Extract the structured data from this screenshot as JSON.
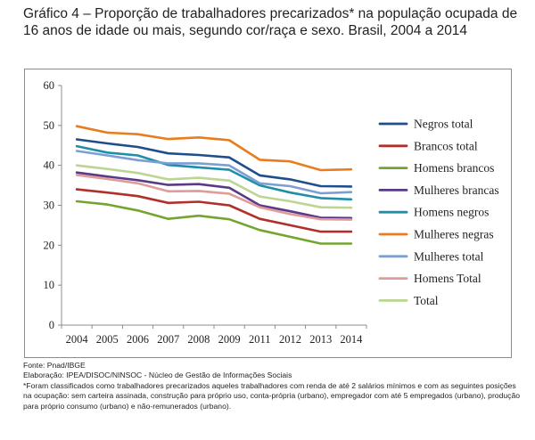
{
  "title": "Gráfico 4 – Proporção de trabalhadores precarizados* na população ocupada de 16 anos de idade ou mais, segundo cor/raça e sexo. Brasil, 2004 a 2014",
  "notes": {
    "source": "Fonte: Pnad/IBGE",
    "elaboration": "Elaboração: IPEA/DISOC/NINSOC - Núcleo de Gestão de Informações Sociais",
    "footnote": "*Foram classificados como trabalhadores precarizados aqueles trabalhadores com renda de até 2 salários mínimos e com as seguintes posições na ocupação: sem carteira assinada, construção para próprio uso, conta-própria (urbano), empregador com até 5 empregados (urbano), produção para próprio consumo (urbano) e não-remunerados (urbano)."
  },
  "chart_data": {
    "type": "line",
    "title": "",
    "xlabel": "",
    "ylabel": "",
    "ylim": [
      0,
      60
    ],
    "yticks": [
      0,
      10,
      20,
      30,
      40,
      50,
      60
    ],
    "grid": false,
    "legend_position": "right",
    "categories": [
      "2004",
      "2005",
      "2006",
      "2007",
      "2008",
      "2009",
      "2011",
      "2012",
      "2013",
      "2014"
    ],
    "series": [
      {
        "name": "Negros total",
        "color": "#1f4e8c",
        "values": [
          46.5,
          45.5,
          44.6,
          43.0,
          42.6,
          42.0,
          37.5,
          36.5,
          34.8,
          34.7
        ]
      },
      {
        "name": "Brancos total",
        "color": "#b0302b",
        "values": [
          34.0,
          33.2,
          32.3,
          30.6,
          30.9,
          30.0,
          26.6,
          25.0,
          23.4,
          23.4
        ]
      },
      {
        "name": "Homens brancos",
        "color": "#74a52e",
        "values": [
          31.0,
          30.2,
          28.7,
          26.6,
          27.4,
          26.5,
          23.8,
          22.1,
          20.4,
          20.4
        ]
      },
      {
        "name": "Mulheres brancas",
        "color": "#5a3a86",
        "values": [
          38.2,
          37.2,
          36.3,
          35.1,
          35.3,
          34.4,
          30.0,
          28.5,
          26.9,
          26.8
        ]
      },
      {
        "name": "Homens negros",
        "color": "#1f8fa8",
        "values": [
          44.8,
          43.2,
          42.5,
          40.1,
          39.5,
          38.9,
          35.0,
          33.2,
          31.8,
          31.5
        ]
      },
      {
        "name": "Mulheres negras",
        "color": "#e87d1e",
        "values": [
          49.8,
          48.2,
          47.8,
          46.6,
          47.0,
          46.3,
          41.4,
          41.0,
          38.8,
          39.0
        ]
      },
      {
        "name": "Mulheres total",
        "color": "#7b9fd4",
        "values": [
          43.6,
          42.5,
          41.3,
          40.5,
          40.5,
          40.0,
          35.5,
          34.8,
          33.0,
          33.3
        ]
      },
      {
        "name": "Homens Total",
        "color": "#e09b9b",
        "values": [
          37.6,
          36.6,
          35.5,
          33.5,
          33.6,
          32.9,
          29.5,
          27.8,
          26.5,
          26.4
        ]
      },
      {
        "name": "Total",
        "color": "#bcd592",
        "values": [
          40.0,
          39.1,
          38.1,
          36.5,
          36.9,
          36.2,
          32.2,
          31.0,
          29.5,
          29.4
        ]
      }
    ]
  }
}
